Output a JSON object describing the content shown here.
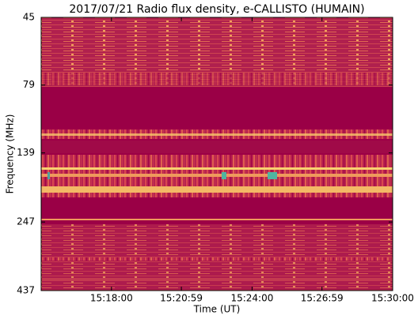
{
  "chart_data": {
    "type": "spectrogram",
    "title": "2017/07/21  Radio flux density, e-CALLISTO (HUMAIN)",
    "x_label": "Time (UT)",
    "y_label": "Frequency (MHz)",
    "xlim": [
      "15:15:00",
      "15:30:00"
    ],
    "xticks": [
      "15:18:00",
      "15:20:59",
      "15:24:00",
      "15:26:59",
      "15:30:00"
    ],
    "ylim": [
      45,
      437
    ],
    "yticks": [
      45,
      79,
      139,
      247,
      437
    ],
    "y_scale": "log",
    "y_inverted": true
  }
}
